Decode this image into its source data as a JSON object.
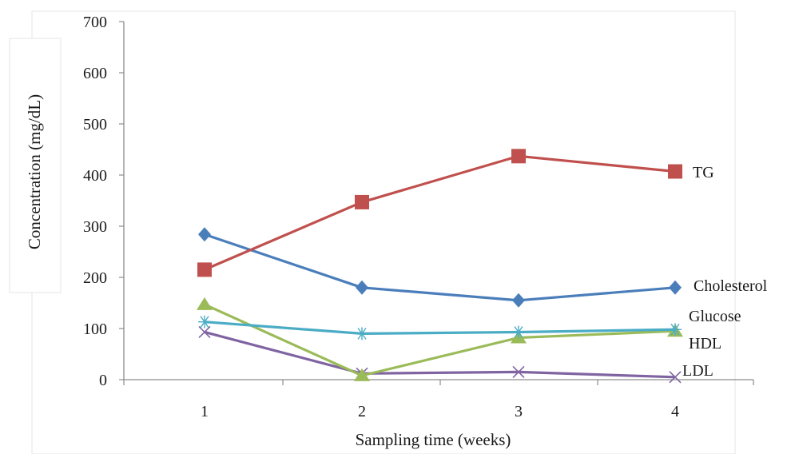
{
  "chart_data": {
    "type": "line",
    "title": "",
    "xlabel": "Sampling time (weeks)",
    "ylabel": "Concentration (mg/dL)",
    "categories": [
      "1",
      "2",
      "3",
      "4"
    ],
    "ylim": [
      0,
      700
    ],
    "yticks": [
      "0",
      "100",
      "200",
      "300",
      "400",
      "500",
      "600",
      "700"
    ],
    "grid": false,
    "legend": "direct labels at right end of each line",
    "series": [
      {
        "name": "TG",
        "values": [
          215,
          347,
          437,
          407
        ],
        "color": "#c0504d",
        "marker": "square"
      },
      {
        "name": "Cholesterol",
        "values": [
          284,
          180,
          155,
          180
        ],
        "color": "#4a7ebb",
        "marker": "diamond"
      },
      {
        "name": "Glucose",
        "values": [
          113,
          90,
          93,
          98
        ],
        "color": "#4bacc6",
        "marker": "asterisk"
      },
      {
        "name": "HDL",
        "values": [
          147,
          8,
          82,
          95
        ],
        "color": "#9bbb59",
        "marker": "triangle"
      },
      {
        "name": "LDL",
        "values": [
          93,
          12,
          15,
          5
        ],
        "color": "#8064a2",
        "marker": "x"
      }
    ]
  }
}
